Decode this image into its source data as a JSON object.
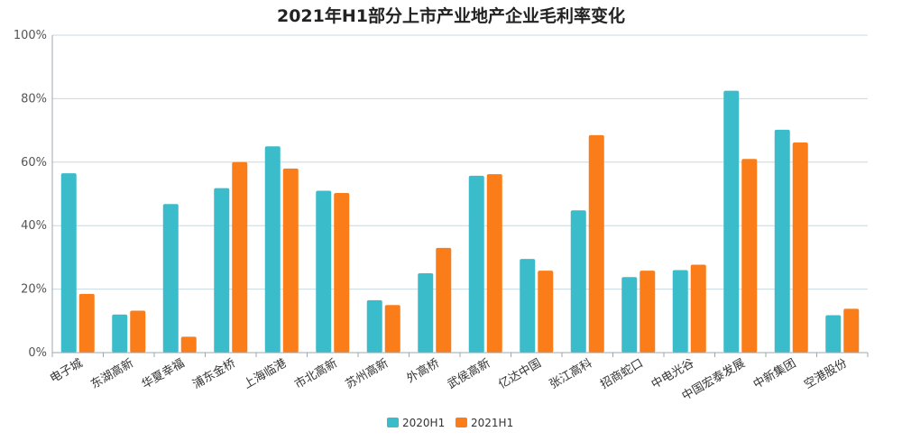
{
  "chart_data": {
    "type": "bar",
    "title": "2021年H1部分上市产业地产企业毛利率变化",
    "xlabel": "",
    "ylabel": "",
    "ylim": [
      0,
      100
    ],
    "y_ticks": [
      "0%",
      "20%",
      "40%",
      "60%",
      "80%",
      "100%"
    ],
    "grid": true,
    "legend_position": "bottom",
    "categories": [
      "电子城",
      "东湖高新",
      "华夏幸福",
      "浦东金桥",
      "上海临港",
      "市北高新",
      "苏州高新",
      "外高桥",
      "武侯高新",
      "亿达中国",
      "张江高科",
      "招商蛇口",
      "中电光谷",
      "中国宏泰发展",
      "中新集团",
      "空港股份"
    ],
    "series": [
      {
        "name": "2020H1",
        "color": "#3bbccb",
        "values": [
          56.5,
          12,
          46.8,
          51.8,
          65,
          51,
          16.5,
          25,
          55.7,
          29.5,
          44.8,
          23.8,
          26,
          82.5,
          70.2,
          11.8
        ]
      },
      {
        "name": "2021H1",
        "color": "#fa7d19",
        "values": [
          18.5,
          13.2,
          5,
          60,
          58,
          50.3,
          15,
          33,
          56.2,
          25.8,
          68.5,
          25.8,
          27.7,
          61,
          66.2,
          13.8
        ]
      }
    ]
  }
}
